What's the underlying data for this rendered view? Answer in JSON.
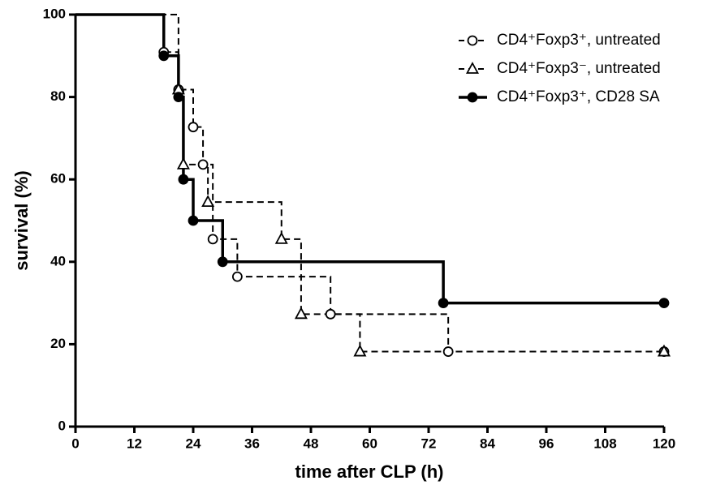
{
  "chart_data": {
    "type": "step",
    "xlabel": "time after CLP (h)",
    "ylabel": "survival (%)",
    "xlim": [
      0,
      120
    ],
    "ylim": [
      0,
      100
    ],
    "xticks": [
      0,
      12,
      24,
      36,
      48,
      60,
      72,
      84,
      96,
      108,
      120
    ],
    "yticks": [
      0,
      20,
      40,
      60,
      80,
      100
    ],
    "legend": "top-right",
    "series": [
      {
        "name": "CD4⁺Foxp3⁺, untreated",
        "color": "#000000",
        "dash": true,
        "marker": "open-circle",
        "x": [
          18,
          21,
          24,
          26,
          28,
          33,
          52,
          76,
          120
        ],
        "values": [
          90.9,
          81.8,
          72.7,
          63.6,
          45.5,
          36.4,
          27.3,
          18.2,
          18.2
        ]
      },
      {
        "name": "CD4⁺Foxp3⁻, untreated",
        "color": "#000000",
        "dash": true,
        "marker": "open-triangle",
        "x": [
          21,
          22,
          27,
          42,
          46,
          58,
          120
        ],
        "values": [
          81.8,
          63.6,
          54.5,
          45.5,
          27.3,
          18.2,
          18.2
        ]
      },
      {
        "name": "CD4⁺Foxp3⁺, CD28 SA",
        "color": "#000000",
        "dash": false,
        "marker": "filled-circle",
        "x": [
          18,
          21,
          22,
          24,
          30,
          75,
          120
        ],
        "values": [
          90,
          80,
          60,
          50,
          40,
          30,
          30
        ]
      }
    ]
  }
}
